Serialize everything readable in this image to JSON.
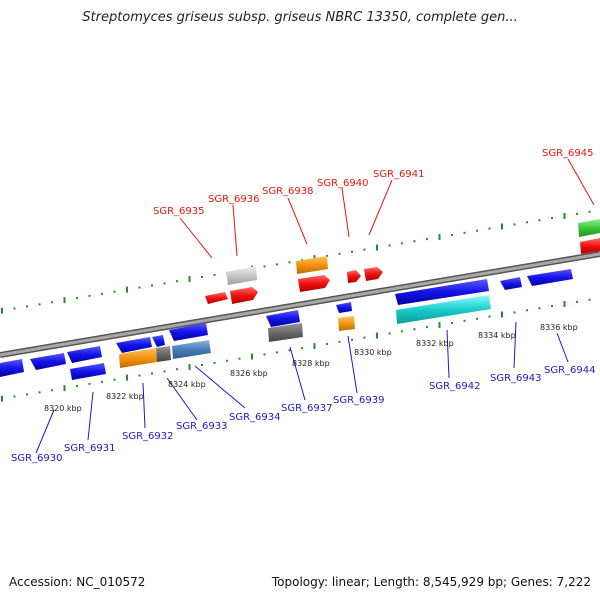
{
  "title": "Streptomyces griseus subsp. griseus NBRC 13350, complete gen...",
  "footer": {
    "accession": "Accession: NC_010572",
    "summary": "Topology: linear; Length: 8,545,929 bp; Genes: 7,222"
  },
  "colors": {
    "forward_label": "#e8160b",
    "reverse_label": "#1a1acc",
    "backbone": "#8c8c8c",
    "tick": "#2a8a2a"
  },
  "axis_labels": [
    "8320 kbp",
    "8322 kbp",
    "8324 kbp",
    "8326 kbp",
    "8328 kbp",
    "8330 kbp",
    "8332 kbp",
    "8334 kbp",
    "8336 kbp"
  ],
  "forward_gene_labels": [
    "SGR_6935",
    "SGR_6936",
    "SGR_6938",
    "SGR_6940",
    "SGR_6941",
    "SGR_6945"
  ],
  "reverse_gene_labels": [
    "SGR_6930",
    "SGR_6931",
    "SGR_6932",
    "SGR_6933",
    "SGR_6934",
    "SGR_6937",
    "SGR_6939",
    "SGR_6942",
    "SGR_6943",
    "SGR_6944"
  ]
}
